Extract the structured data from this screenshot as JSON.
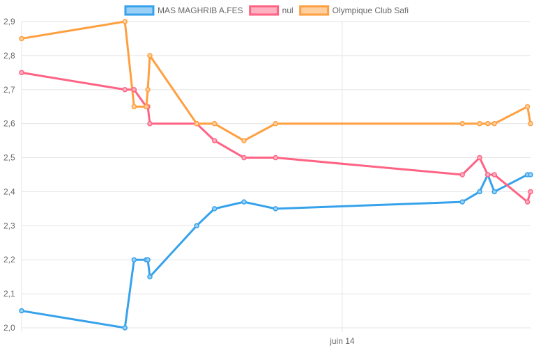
{
  "chart_data": {
    "type": "line",
    "title": "",
    "xlabel": "",
    "ylabel": "",
    "ylim": [
      2.0,
      2.9
    ],
    "yticks": [
      "2,0",
      "2,1",
      "2,2",
      "2,3",
      "2,4",
      "2,5",
      "2,6",
      "2,7",
      "2,8",
      "2,9"
    ],
    "xtick_labels": [
      {
        "label": "juin 14",
        "t": 0.63
      }
    ],
    "grid": true,
    "legend_position": "top-center",
    "x": [
      0.0,
      0.203,
      0.221,
      0.245,
      0.248,
      0.252,
      0.344,
      0.379,
      0.437,
      0.499,
      0.866,
      0.9,
      0.916,
      0.929,
      0.994,
      1.0
    ],
    "series": [
      {
        "name": "MAS MAGHRIB A.FES",
        "color": "#36a2eb",
        "fill": "#9ad0f5",
        "values": [
          2.05,
          2.0,
          2.2,
          2.2,
          2.2,
          2.15,
          2.3,
          2.35,
          2.37,
          2.35,
          2.37,
          2.4,
          2.45,
          2.4,
          2.45,
          2.45
        ]
      },
      {
        "name": "nul",
        "color": "#ff6384",
        "fill": "#ffb1c1",
        "values": [
          2.75,
          2.7,
          2.7,
          2.65,
          2.65,
          2.6,
          2.6,
          2.55,
          2.5,
          2.5,
          2.45,
          2.5,
          2.45,
          2.45,
          2.37,
          2.4
        ]
      },
      {
        "name": "Olympique Club Safi",
        "color": "#ff9f40",
        "fill": "#ffcf9f",
        "values": [
          2.85,
          2.9,
          2.65,
          2.65,
          2.7,
          2.8,
          2.6,
          2.6,
          2.55,
          2.6,
          2.6,
          2.6,
          2.6,
          2.6,
          2.65,
          2.6
        ]
      }
    ]
  }
}
